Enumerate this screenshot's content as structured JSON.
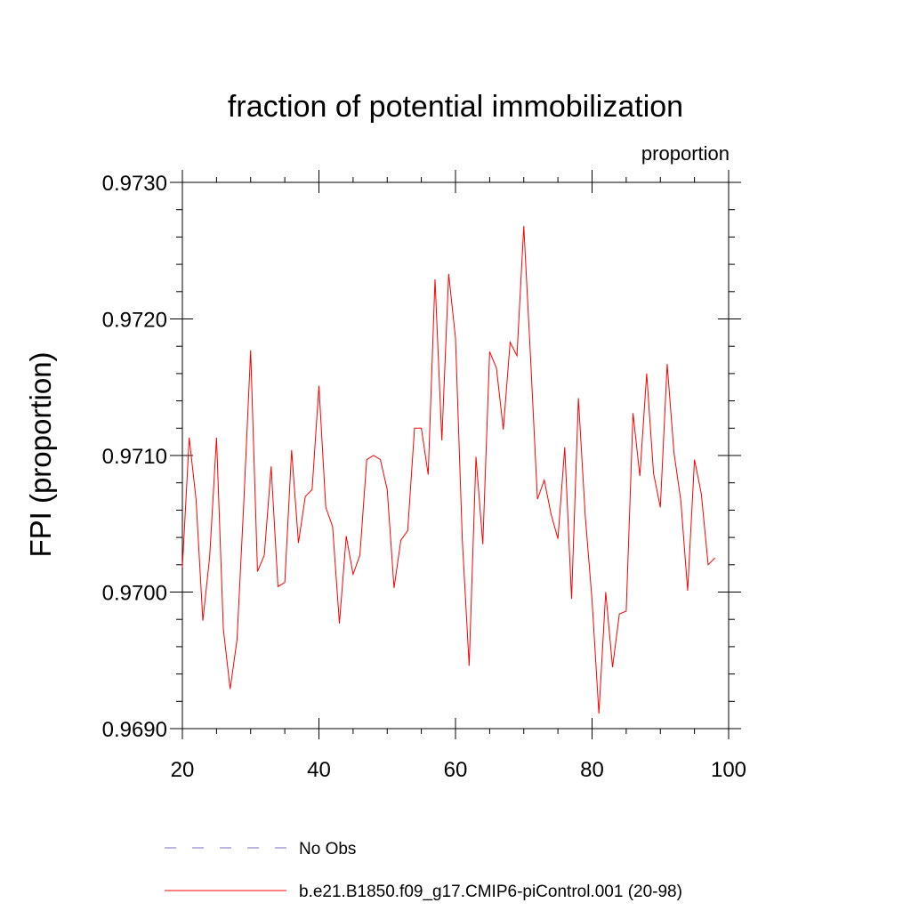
{
  "chart_data": {
    "type": "line",
    "title": "fraction of potential immobilization",
    "units_label": "proportion",
    "ylabel": "FPI  (proportion)",
    "xlabel": "",
    "xlim": [
      20,
      100
    ],
    "ylim": [
      0.969,
      0.973
    ],
    "x_ticks": [
      20,
      40,
      60,
      80,
      100
    ],
    "x_tick_labels": [
      "20",
      "40",
      "60",
      "80",
      "100"
    ],
    "y_ticks": [
      0.969,
      0.97,
      0.971,
      0.972,
      0.973
    ],
    "y_tick_labels": [
      "0.9690",
      "0.9700",
      "0.9710",
      "0.9720",
      "0.9730"
    ],
    "grid": false,
    "legend_position": "bottom",
    "series": [
      {
        "name": "b.e21.B1850.f09_g17.CMIP6-piControl.001 (20-98)",
        "color": "#ff0000",
        "style": "solid",
        "x": [
          20,
          21,
          22,
          23,
          24,
          25,
          26,
          27,
          28,
          29,
          30,
          31,
          32,
          33,
          34,
          35,
          36,
          37,
          38,
          39,
          40,
          41,
          42,
          43,
          44,
          45,
          46,
          47,
          48,
          49,
          50,
          51,
          52,
          53,
          54,
          55,
          56,
          57,
          58,
          59,
          60,
          61,
          62,
          63,
          64,
          65,
          66,
          67,
          68,
          69,
          70,
          71,
          72,
          73,
          74,
          75,
          76,
          77,
          78,
          79,
          80,
          81,
          82,
          83,
          84,
          85,
          86,
          87,
          88,
          89,
          90,
          91,
          92,
          93,
          94,
          95,
          96,
          97,
          98
        ],
        "y": [
          0.97018,
          0.97113,
          0.97068,
          0.96979,
          0.97026,
          0.97113,
          0.96973,
          0.96929,
          0.96965,
          0.97066,
          0.97177,
          0.97015,
          0.97027,
          0.97092,
          0.97004,
          0.97007,
          0.97104,
          0.97036,
          0.9707,
          0.97075,
          0.97151,
          0.97062,
          0.97048,
          0.96977,
          0.97041,
          0.97013,
          0.97027,
          0.97097,
          0.971,
          0.97097,
          0.97075,
          0.97003,
          0.97038,
          0.97045,
          0.9712,
          0.9712,
          0.97086,
          0.97229,
          0.97111,
          0.97233,
          0.97186,
          0.97038,
          0.96946,
          0.97099,
          0.97035,
          0.97176,
          0.97164,
          0.97119,
          0.97183,
          0.97173,
          0.97268,
          0.97171,
          0.97068,
          0.97082,
          0.97057,
          0.97039,
          0.97106,
          0.96995,
          0.97142,
          0.97056,
          0.96994,
          0.96911,
          0.97,
          0.96945,
          0.96984,
          0.96986,
          0.97131,
          0.97085,
          0.9716,
          0.97087,
          0.97062,
          0.97167,
          0.97102,
          0.97067,
          0.97001,
          0.97097,
          0.97072,
          0.9702,
          0.97025
        ]
      }
    ],
    "legend": [
      {
        "label": "No Obs",
        "color": "#7b68c8",
        "style": "dashed"
      },
      {
        "label": "b.e21.B1850.f09_g17.CMIP6-piControl.001 (20-98)",
        "color": "#ff0000",
        "style": "solid"
      }
    ]
  }
}
